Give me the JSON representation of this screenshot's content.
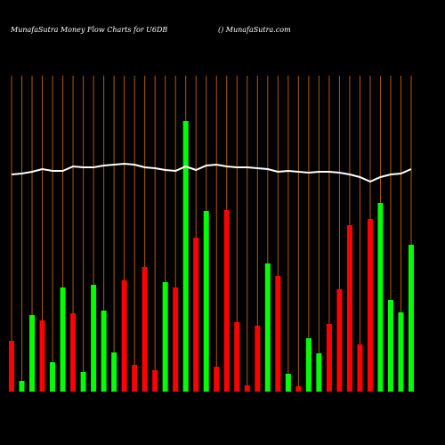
{
  "chart_data": {
    "type": "bar",
    "title": "MunafaSutra  Money Flow  Charts for U6DB",
    "subtitle": "() MunafaSutra.com",
    "ylim": [
      0,
      320
    ],
    "grid": true,
    "grid_color": "#b35a00",
    "values": [
      57,
      12,
      86,
      80,
      33,
      117,
      88,
      22,
      120,
      91,
      44,
      125,
      30,
      140,
      24,
      123,
      117,
      304,
      173,
      203,
      28,
      204,
      78,
      7,
      74,
      144,
      130,
      20,
      6,
      60,
      43,
      76,
      115,
      187,
      53,
      194,
      212,
      103,
      89,
      165
    ],
    "colors": [
      "#ff0000",
      "#00ff00",
      "#00ff00",
      "#ff0000",
      "#00ff00",
      "#00ff00",
      "#ff0000",
      "#00ff00",
      "#00ff00",
      "#00ff00",
      "#00ff00",
      "#ff0000",
      "#ff0000",
      "#ff0000",
      "#ff0000",
      "#00ff00",
      "#ff0000",
      "#00ff00",
      "#ff0000",
      "#00ff00",
      "#ff0000",
      "#ff0000",
      "#ff0000",
      "#ff0000",
      "#ff0000",
      "#00ff00",
      "#ff0000",
      "#00ff00",
      "#ff0000",
      "#00ff00",
      "#00ff00",
      "#ff0000",
      "#ff0000",
      "#ff0000",
      "#ff0000",
      "#ff0000",
      "#00ff00",
      "#00ff00",
      "#00ff00",
      "#00ff00"
    ],
    "line": {
      "color": "#ffffff",
      "values": [
        244,
        245,
        247,
        250,
        248,
        248,
        253,
        252,
        252,
        254,
        255,
        256,
        255,
        252,
        251,
        249,
        248,
        253,
        249,
        254,
        255,
        253,
        252,
        252,
        251,
        250,
        247,
        248,
        247,
        246,
        247,
        247,
        246,
        244,
        241,
        236,
        241,
        244,
        245,
        250
      ]
    }
  }
}
